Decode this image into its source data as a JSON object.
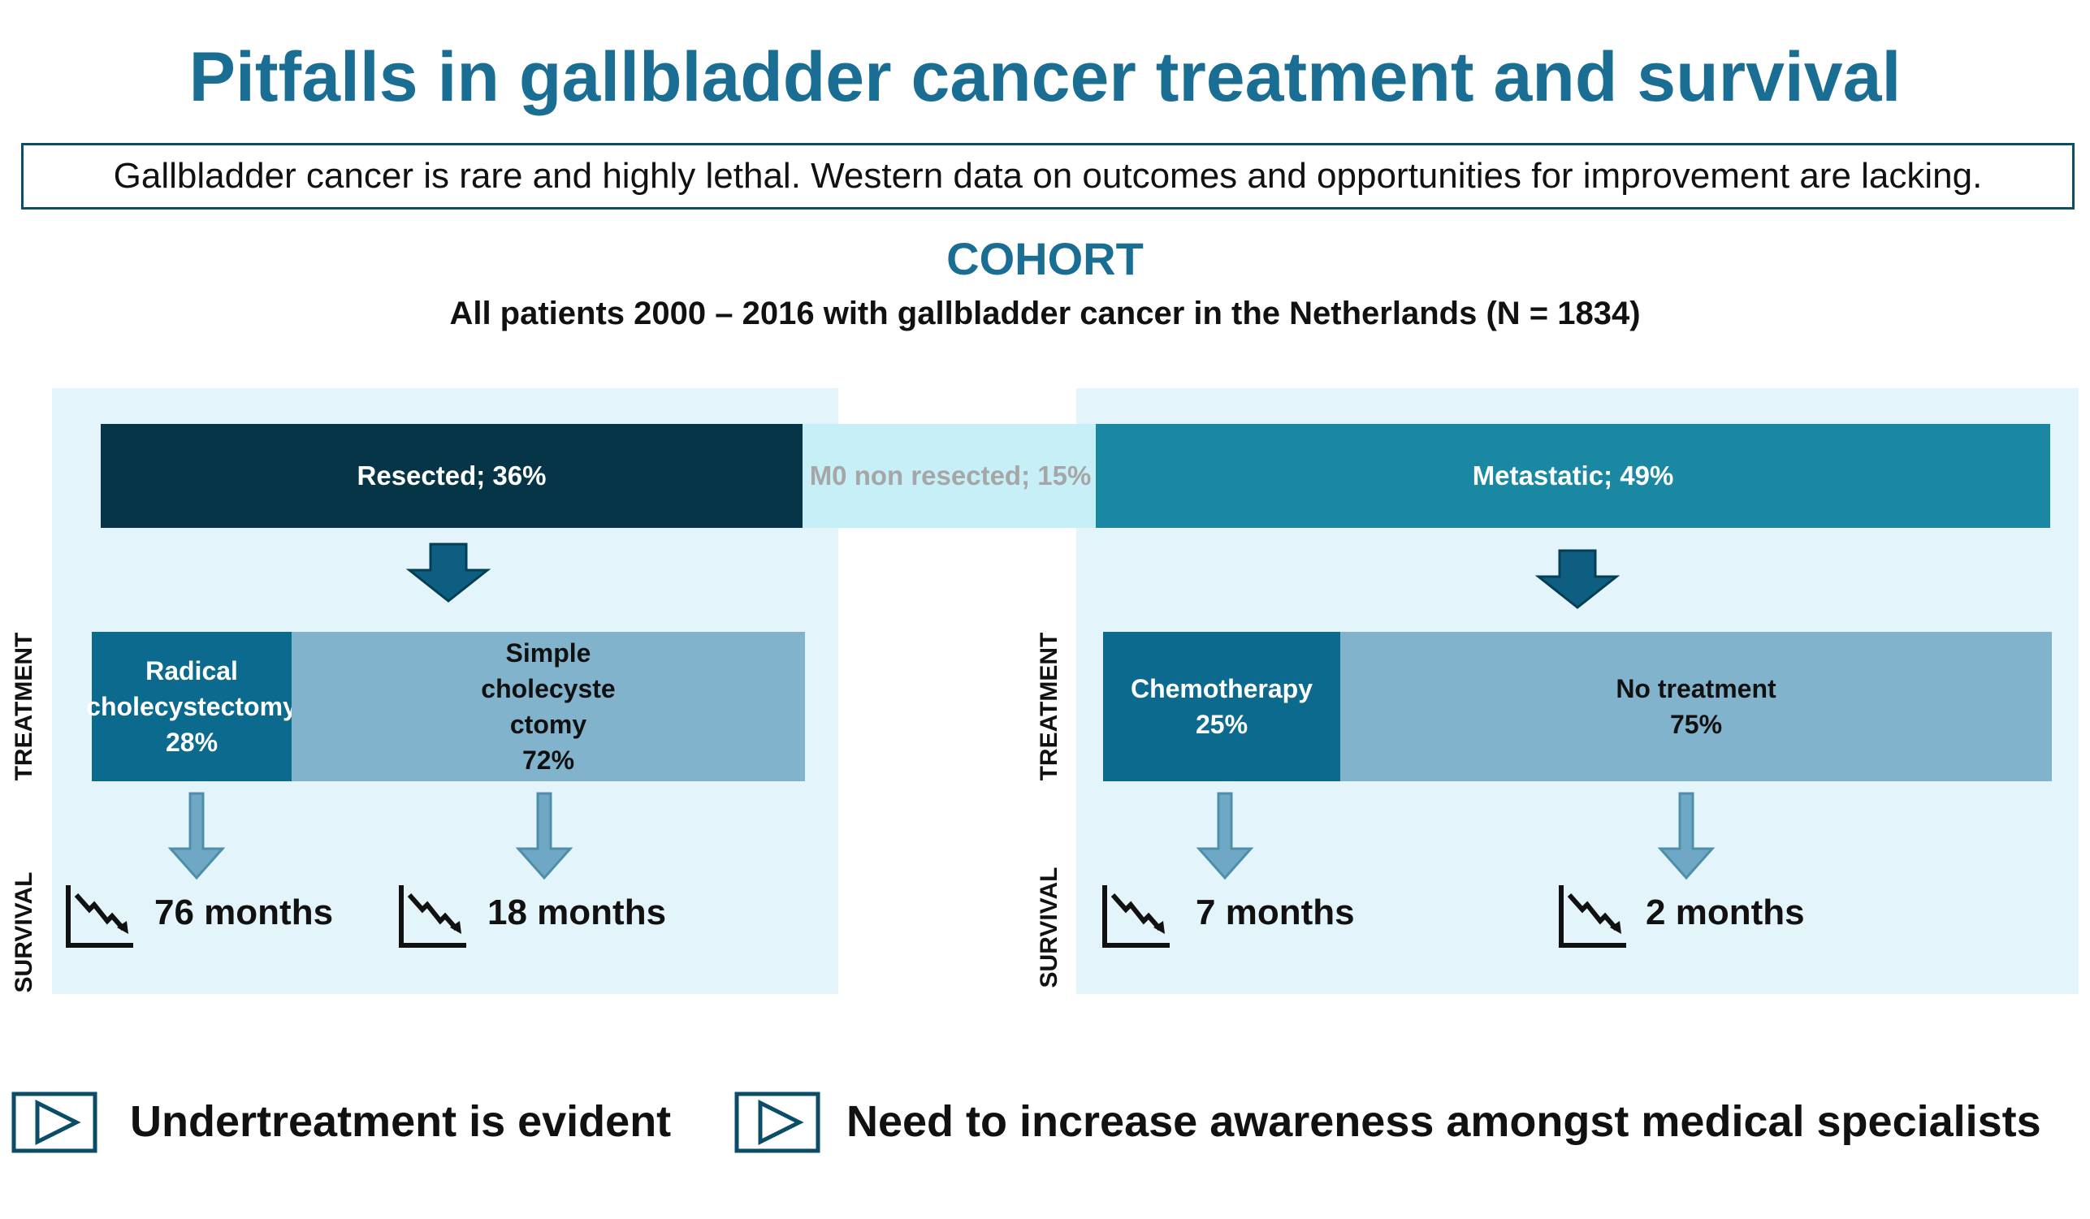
{
  "title": "Pitfalls in gallbladder cancer treatment and survival",
  "intro": "Gallbladder cancer is rare and highly lethal. Western data on outcomes and opportunities for improvement are lacking.",
  "cohort": {
    "heading": "COHORT",
    "subtitle": "All patients 2000 – 2016 with gallbladder cancer in the Netherlands (N = 1834)"
  },
  "groups": {
    "resected": {
      "label": "Resected; 36%",
      "percent": 36
    },
    "m0": {
      "label": "M0 non resected; 15%",
      "percent": 15
    },
    "metastatic": {
      "label": "Metastatic; 49%",
      "percent": 49
    }
  },
  "labels": {
    "treatment": "TREATMENT",
    "survival": "SURVIVAL"
  },
  "left": {
    "radical": {
      "line1": "Radical",
      "line2": "cholecystectomy",
      "line3": "28%"
    },
    "simple": {
      "line1": "Simple",
      "line2": "cholecyste",
      "line3": "ctomy",
      "line4": "72%"
    },
    "survival": [
      "76 months",
      "18 months"
    ]
  },
  "right": {
    "chemo": {
      "line1": "Chemotherapy",
      "line2": "25%"
    },
    "none": {
      "line1": "No treatment",
      "line2": "75%"
    },
    "survival": [
      "7 months",
      "2 months"
    ]
  },
  "conclusions": [
    "Undertreatment is evident",
    "Need to increase awareness amongst medical specialists"
  ],
  "icons": {
    "down_arrow": "down-arrow-icon",
    "survival_curve": "declining-chart-icon",
    "play": "play-icon"
  },
  "colors": {
    "title": "#1a6e93",
    "resected": "#053546",
    "m0": "#c6eff8",
    "metastatic": "#1a87a3",
    "treatment_dark": "#0d6a8f",
    "treatment_light": "#82b3cc",
    "panel": "#e3f5fb"
  }
}
